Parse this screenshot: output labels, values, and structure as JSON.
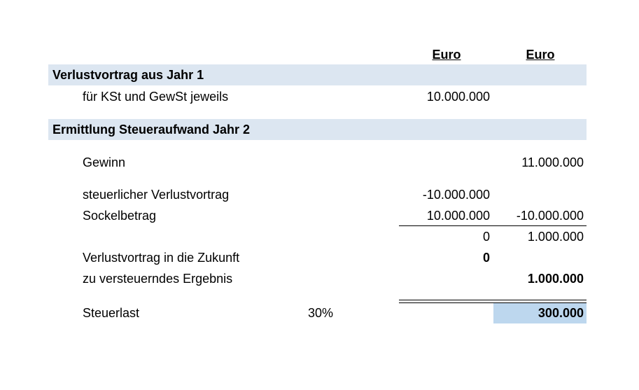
{
  "header": {
    "col1": "Euro",
    "col2": "Euro"
  },
  "sections": [
    {
      "title": "Verlustvortrag aus Jahr 1",
      "rows": [
        {
          "label": "für KSt und GewSt jeweils",
          "col1": "10.000.000"
        }
      ]
    },
    {
      "title": "Ermittlung Steueraufwand Jahr 2",
      "rows": [
        {
          "label": "Gewinn",
          "col2": "11.000.000"
        },
        {
          "label": "steuerlicher Verlustvortrag",
          "col1": "-10.000.000"
        },
        {
          "label": "Sockelbetrag",
          "col1": "10.000.000",
          "col2": "-10.000.000"
        },
        {
          "col1": "0",
          "col2": "1.000.000"
        },
        {
          "label": "Verlustvortrag in die Zukunft",
          "col1": "0"
        },
        {
          "label": "zu versteuerndes Ergebnis",
          "col2": "1.000.000"
        },
        {
          "label": "Steuerlast",
          "rate": "30%",
          "col2": "300.000"
        }
      ]
    }
  ]
}
